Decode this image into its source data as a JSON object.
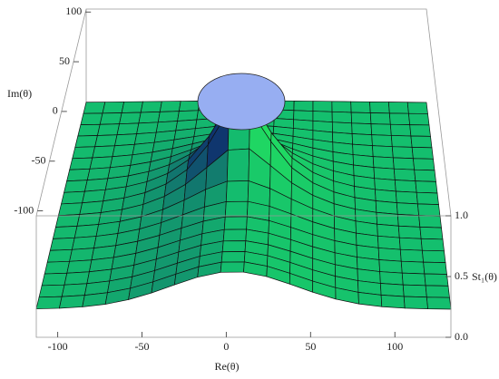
{
  "chart_data": {
    "type": "surface3d",
    "x_label": "Re(θ)",
    "y_label": "Im(θ)",
    "z_label": "St₁(θ)",
    "xlim": [
      -110,
      123
    ],
    "xticks": [
      -100,
      -50,
      0,
      50,
      100
    ],
    "ylim": [
      -105,
      103
    ],
    "yticks": [
      -100,
      -50,
      0,
      50,
      100
    ],
    "zlim": [
      0,
      1
    ],
    "zticks": [
      {
        "value": 0,
        "label": "0.0"
      },
      {
        "value": 0.5,
        "label": "0.5"
      },
      {
        "value": 1,
        "label": "1.0"
      }
    ]
  }
}
